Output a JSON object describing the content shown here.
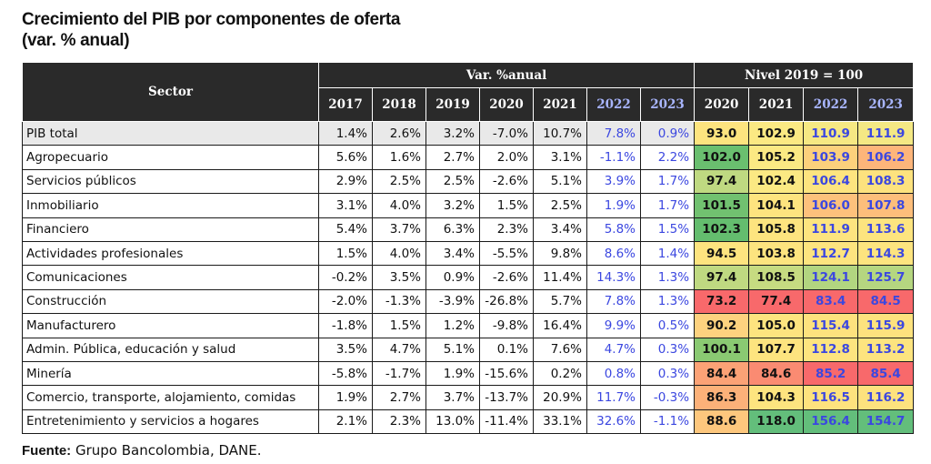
{
  "title": {
    "line1": "Crecimiento del PIB por componentes de oferta",
    "line2": "(var. % anual)"
  },
  "table": {
    "sector_header": "Sector",
    "var_group_header": "Var. %anual",
    "level_group_header": "Nivel 2019 = 100",
    "var_years": [
      "2017",
      "2018",
      "2019",
      "2020",
      "2021",
      "2022",
      "2023"
    ],
    "level_years": [
      "2020",
      "2021",
      "2022",
      "2023"
    ],
    "projection_years": [
      "2022",
      "2023"
    ],
    "rows": [
      {
        "sector": "PIB total",
        "var": [
          "1.4%",
          "2.6%",
          "3.2%",
          "-7.0%",
          "10.7%",
          "7.8%",
          "0.9%"
        ],
        "level": [
          "93.0",
          "102.9",
          "110.9",
          "111.9"
        ],
        "level_colors": [
          "#fde47f",
          "#fbe983",
          "#f6e883",
          "#f4e884"
        ]
      },
      {
        "sector": "Agropecuario",
        "var": [
          "5.6%",
          "1.6%",
          "2.7%",
          "2.0%",
          "3.1%",
          "-1.1%",
          "2.2%"
        ],
        "level": [
          "102.0",
          "105.2",
          "103.9",
          "106.2"
        ],
        "level_colors": [
          "#6abf6f",
          "#fbe983",
          "#fcd07c",
          "#fdb57a"
        ]
      },
      {
        "sector": "Servicios públicos",
        "var": [
          "2.9%",
          "2.5%",
          "2.5%",
          "-2.6%",
          "5.1%",
          "3.9%",
          "1.7%"
        ],
        "level": [
          "97.4",
          "102.4",
          "106.4",
          "108.3"
        ],
        "level_colors": [
          "#bfd981",
          "#fbe983",
          "#fde47f",
          "#fde27e"
        ]
      },
      {
        "sector": "Inmobiliario",
        "var": [
          "3.1%",
          "4.0%",
          "3.2%",
          "1.5%",
          "2.5%",
          "1.9%",
          "1.7%"
        ],
        "level": [
          "101.5",
          "104.1",
          "106.0",
          "107.8"
        ],
        "level_colors": [
          "#71c170",
          "#fde47f",
          "#fdc17c",
          "#fdbe7b"
        ]
      },
      {
        "sector": "Financiero",
        "var": [
          "5.4%",
          "3.7%",
          "6.3%",
          "2.3%",
          "3.4%",
          "5.8%",
          "1.5%"
        ],
        "level": [
          "102.3",
          "105.8",
          "111.9",
          "113.6"
        ],
        "level_colors": [
          "#64bd6e",
          "#fde47f",
          "#fde47f",
          "#fde47f"
        ]
      },
      {
        "sector": "Actividades profesionales",
        "var": [
          "1.5%",
          "4.0%",
          "3.4%",
          "-5.5%",
          "9.8%",
          "8.6%",
          "1.4%"
        ],
        "level": [
          "94.5",
          "103.8",
          "112.7",
          "114.3"
        ],
        "level_colors": [
          "#fde47f",
          "#fde47f",
          "#fde47f",
          "#fde47f"
        ]
      },
      {
        "sector": "Comunicaciones",
        "var": [
          "-0.2%",
          "3.5%",
          "0.9%",
          "-2.6%",
          "11.4%",
          "14.3%",
          "1.3%"
        ],
        "level": [
          "97.4",
          "108.5",
          "124.1",
          "125.7"
        ],
        "level_colors": [
          "#bfd981",
          "#c6db81",
          "#b2d580",
          "#b5d680"
        ]
      },
      {
        "sector": "Construcción",
        "var": [
          "-2.0%",
          "-1.3%",
          "-3.9%",
          "-26.8%",
          "5.7%",
          "7.8%",
          "1.3%"
        ],
        "level": [
          "73.2",
          "77.4",
          "83.4",
          "84.5"
        ],
        "level_colors": [
          "#f8696b",
          "#f8696b",
          "#f8696b",
          "#f8696b"
        ]
      },
      {
        "sector": "Manufacturero",
        "var": [
          "-1.8%",
          "1.5%",
          "1.2%",
          "-9.8%",
          "16.4%",
          "9.9%",
          "0.5%"
        ],
        "level": [
          "90.2",
          "105.0",
          "115.4",
          "115.9"
        ],
        "level_colors": [
          "#fdd27f",
          "#fde47f",
          "#fde27e",
          "#fde27e"
        ]
      },
      {
        "sector": "Admin. Pública, educación y salud",
        "var": [
          "3.5%",
          "4.7%",
          "5.1%",
          "0.1%",
          "7.6%",
          "4.7%",
          "0.3%"
        ],
        "level": [
          "100.1",
          "107.7",
          "112.8",
          "113.2"
        ],
        "level_colors": [
          "#8ac972",
          "#fde47f",
          "#fde47f",
          "#fde47f"
        ]
      },
      {
        "sector": "Minería",
        "var": [
          "-5.8%",
          "-1.7%",
          "1.9%",
          "-15.6%",
          "0.2%",
          "0.8%",
          "0.3%"
        ],
        "level": [
          "84.4",
          "84.6",
          "85.2",
          "85.4"
        ],
        "level_colors": [
          "#fba276",
          "#fa8b72",
          "#f8696b",
          "#f8696b"
        ]
      },
      {
        "sector": "Comercio, transporte, alojamiento, comidas",
        "var": [
          "1.9%",
          "2.7%",
          "3.7%",
          "-13.7%",
          "20.9%",
          "11.7%",
          "-0.3%"
        ],
        "level": [
          "86.3",
          "104.3",
          "116.5",
          "116.2"
        ],
        "level_colors": [
          "#fcb179",
          "#fde47f",
          "#fde27e",
          "#fde27e"
        ]
      },
      {
        "sector": "Entretenimiento y servicios a hogares",
        "var": [
          "2.1%",
          "2.3%",
          "13.0%",
          "-11.4%",
          "33.1%",
          "32.6%",
          "-1.1%"
        ],
        "level": [
          "88.6",
          "118.0",
          "156.4",
          "154.7"
        ],
        "level_colors": [
          "#fdc77d",
          "#63be7b",
          "#63be7b",
          "#63be7b"
        ]
      }
    ]
  },
  "footer": {
    "label": "Fuente:",
    "text": "Grupo Bancolombia, DANE."
  },
  "colors": {
    "header_bg": "#2a2a2a",
    "projection_text": "#3b47e0",
    "projection_header_text": "#a9b6ff"
  }
}
